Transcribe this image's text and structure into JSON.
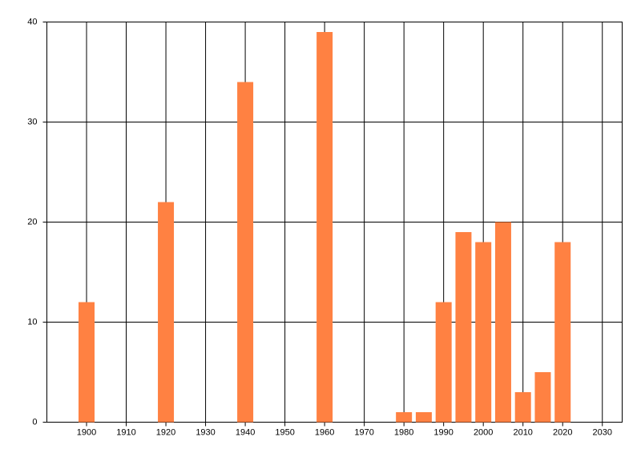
{
  "chart_data": {
    "type": "bar",
    "x": [
      1900,
      1920,
      1940,
      1960,
      1980,
      1985,
      1990,
      1995,
      2000,
      2005,
      2010,
      2015,
      2020
    ],
    "values": [
      12,
      22,
      34,
      39,
      1,
      1,
      12,
      19,
      18,
      20,
      3,
      5,
      18
    ],
    "color": "#ff8142",
    "xlim": [
      1890,
      2035
    ],
    "xticks": [
      1900,
      1910,
      1920,
      1930,
      1940,
      1950,
      1960,
      1970,
      1980,
      1990,
      2000,
      2010,
      2020,
      2030
    ],
    "ylim": [
      0,
      40
    ],
    "yticks": [
      0,
      10,
      20,
      30,
      40
    ],
    "grid": true
  }
}
